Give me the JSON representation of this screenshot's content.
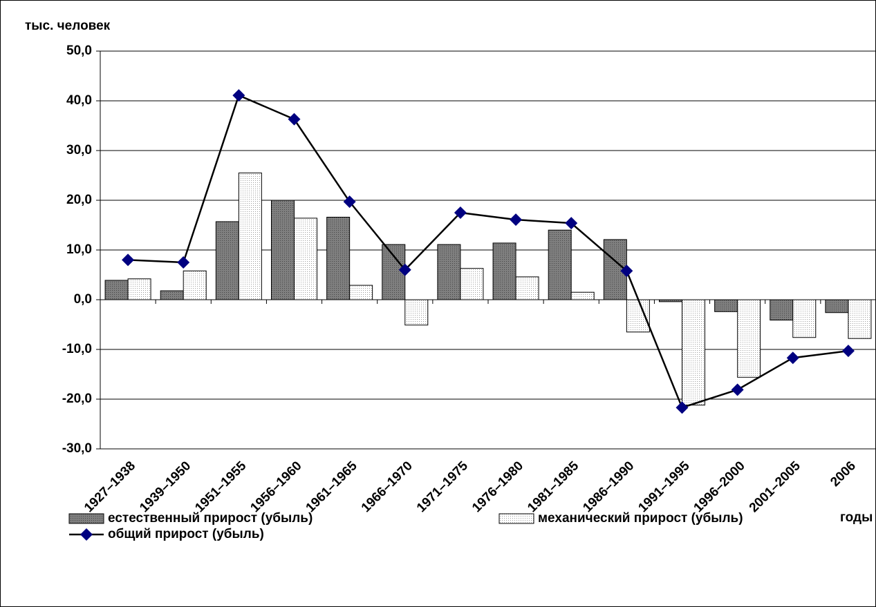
{
  "chart_data": {
    "type": "bar_line",
    "y_label": "тыс. человек",
    "x_label": "годы",
    "categories": [
      "1927–1938",
      "1939–1950",
      "1951–1955",
      "1956–1960",
      "1961–1965",
      "1966–1970",
      "1971–1975",
      "1976–1980",
      "1981–1985",
      "1986–1990",
      "1991–1995",
      "1996–2000",
      "2001–2005",
      "2006"
    ],
    "series": [
      {
        "name": "естественный прирост (убыль)",
        "kind": "bar",
        "color": "#7f7f7f",
        "values": [
          3.9,
          1.8,
          15.7,
          20.0,
          16.6,
          11.1,
          11.1,
          11.4,
          14.0,
          12.1,
          -0.4,
          -2.4,
          -4.1,
          -2.6
        ]
      },
      {
        "name": "механический прирост (убыль)",
        "kind": "bar",
        "color": "#ffffff",
        "values": [
          4.2,
          5.8,
          25.5,
          16.4,
          2.9,
          -5.1,
          6.3,
          4.6,
          1.5,
          -6.5,
          -21.2,
          -15.6,
          -7.6,
          -7.8
        ]
      },
      {
        "name": "общий прирост (убыль)",
        "kind": "line",
        "color": "#000080",
        "values": [
          8.0,
          7.5,
          41.1,
          36.3,
          19.7,
          6.0,
          17.5,
          16.1,
          15.4,
          5.8,
          -21.7,
          -18.1,
          -11.7,
          -10.3
        ]
      }
    ],
    "ylim": [
      -30,
      50
    ],
    "yticks": [
      {
        "value": -30,
        "label": "-30,0"
      },
      {
        "value": -20,
        "label": "-20,0"
      },
      {
        "value": -10,
        "label": "-10,0"
      },
      {
        "value": 0,
        "label": "0,0"
      },
      {
        "value": 10,
        "label": "10,0"
      },
      {
        "value": 20,
        "label": "20,0"
      },
      {
        "value": 30,
        "label": "30,0"
      },
      {
        "value": 40,
        "label": "40,0"
      },
      {
        "value": 50,
        "label": "50,0"
      }
    ],
    "grid": true,
    "legend": "bottom"
  }
}
